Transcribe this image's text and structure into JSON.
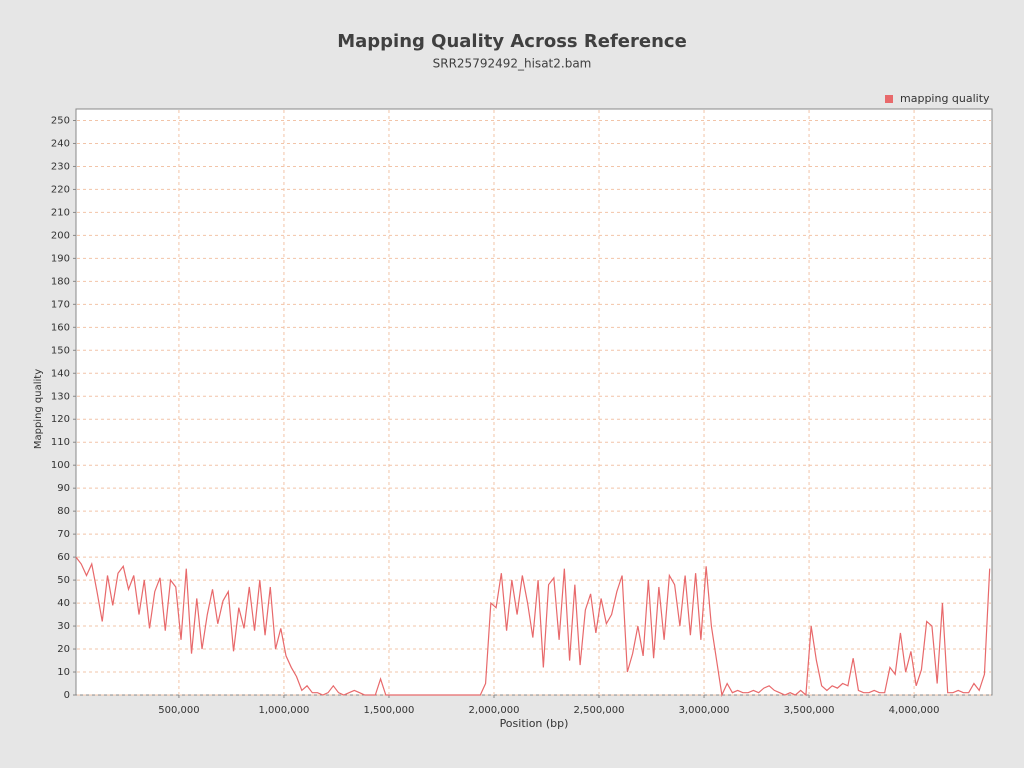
{
  "chart_data": {
    "type": "line",
    "title": "Mapping Quality Across Reference",
    "subtitle": "SRR25792492_hisat2.bam",
    "x_label": "Position (bp)",
    "y_label": "Mapping quality",
    "x": [
      10000,
      35000,
      60000,
      85000,
      110000,
      135000,
      160000,
      185000,
      210000,
      235000,
      260000,
      285000,
      310000,
      335000,
      360000,
      385000,
      410000,
      435000,
      460000,
      485000,
      510000,
      535000,
      560000,
      585000,
      610000,
      635000,
      660000,
      685000,
      710000,
      735000,
      760000,
      785000,
      810000,
      835000,
      860000,
      885000,
      910000,
      935000,
      960000,
      985000,
      1010000,
      1035000,
      1060000,
      1085000,
      1110000,
      1135000,
      1160000,
      1185000,
      1210000,
      1235000,
      1260000,
      1285000,
      1310000,
      1335000,
      1360000,
      1385000,
      1410000,
      1435000,
      1460000,
      1485000,
      1510000,
      1535000,
      1560000,
      1585000,
      1610000,
      1635000,
      1660000,
      1685000,
      1710000,
      1735000,
      1760000,
      1785000,
      1810000,
      1835000,
      1860000,
      1885000,
      1910000,
      1935000,
      1960000,
      1985000,
      2010000,
      2035000,
      2060000,
      2085000,
      2110000,
      2135000,
      2160000,
      2185000,
      2210000,
      2235000,
      2260000,
      2285000,
      2310000,
      2335000,
      2360000,
      2385000,
      2410000,
      2435000,
      2460000,
      2485000,
      2510000,
      2535000,
      2560000,
      2585000,
      2610000,
      2635000,
      2660000,
      2685000,
      2710000,
      2735000,
      2760000,
      2785000,
      2810000,
      2835000,
      2860000,
      2885000,
      2910000,
      2935000,
      2960000,
      2985000,
      3010000,
      3035000,
      3060000,
      3085000,
      3110000,
      3135000,
      3160000,
      3185000,
      3210000,
      3235000,
      3260000,
      3285000,
      3310000,
      3335000,
      3360000,
      3385000,
      3410000,
      3435000,
      3460000,
      3485000,
      3510000,
      3535000,
      3560000,
      3585000,
      3610000,
      3635000,
      3660000,
      3685000,
      3710000,
      3735000,
      3760000,
      3785000,
      3810000,
      3835000,
      3860000,
      3885000,
      3910000,
      3935000,
      3960000,
      3985000,
      4010000,
      4035000,
      4060000,
      4085000,
      4110000,
      4135000,
      4160000,
      4185000,
      4210000,
      4235000,
      4260000,
      4285000,
      4310000,
      4335000,
      4360000
    ],
    "series": [
      {
        "name": "mapping quality",
        "color": "#e8696b",
        "values": [
          60,
          57,
          52,
          57,
          45,
          32,
          52,
          39,
          53,
          56,
          46,
          52,
          35,
          50,
          29,
          45,
          51,
          28,
          50,
          47,
          24,
          55,
          18,
          42,
          20,
          35,
          46,
          31,
          41,
          45,
          19,
          38,
          29,
          47,
          28,
          50,
          26,
          47,
          20,
          29,
          17,
          12,
          8,
          2,
          4,
          1,
          1,
          0,
          1,
          4,
          1,
          0,
          1,
          2,
          1,
          0,
          0,
          0,
          7,
          0,
          0,
          0,
          0,
          0,
          0,
          0,
          0,
          0,
          0,
          0,
          0,
          0,
          0,
          0,
          0,
          0,
          0,
          0,
          5,
          40,
          38,
          53,
          28,
          50,
          35,
          52,
          40,
          25,
          50,
          12,
          48,
          51,
          24,
          55,
          15,
          48,
          13,
          37,
          44,
          27,
          42,
          31,
          35,
          45,
          52,
          10,
          18,
          30,
          17,
          50,
          16,
          47,
          24,
          52,
          48,
          30,
          52,
          26,
          53,
          24,
          56,
          30,
          15,
          0,
          5,
          1,
          2,
          1,
          1,
          2,
          1,
          3,
          4,
          2,
          1,
          0,
          1,
          0,
          2,
          0,
          30,
          15,
          4,
          2,
          4,
          3,
          5,
          4,
          16,
          2,
          1,
          1,
          2,
          1,
          1,
          12,
          9,
          27,
          10,
          19,
          4,
          11,
          32,
          30,
          5,
          40,
          1,
          1,
          2,
          1,
          1,
          5,
          2,
          9,
          55
        ]
      }
    ],
    "xlim": [
      10000,
      4371000
    ],
    "ylim": [
      0,
      255
    ],
    "xticks": [
      {
        "value": 500000,
        "label": "500,000"
      },
      {
        "value": 1000000,
        "label": "1,000,000"
      },
      {
        "value": 1500000,
        "label": "1,500,000"
      },
      {
        "value": 2000000,
        "label": "2,000,000"
      },
      {
        "value": 2500000,
        "label": "2,500,000"
      },
      {
        "value": 3000000,
        "label": "3,000,000"
      },
      {
        "value": 3500000,
        "label": "3,500,000"
      },
      {
        "value": 4000000,
        "label": "4,000,000"
      }
    ],
    "yticks": [
      0,
      10,
      20,
      30,
      40,
      50,
      60,
      70,
      80,
      90,
      100,
      110,
      120,
      130,
      140,
      150,
      160,
      170,
      180,
      190,
      200,
      210,
      220,
      230,
      240,
      250
    ],
    "grid": true,
    "legend": "top-right"
  }
}
